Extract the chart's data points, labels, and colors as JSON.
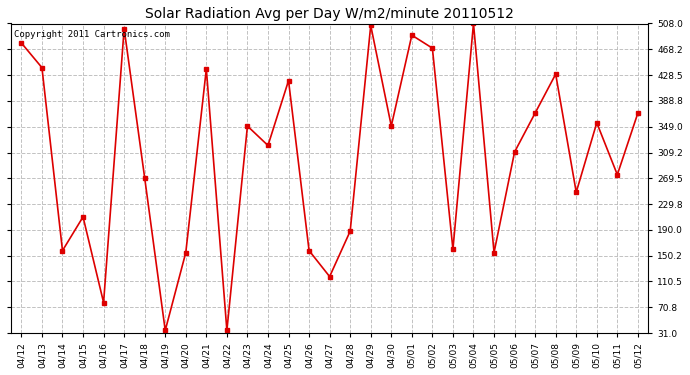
{
  "title": "Solar Radiation Avg per Day W/m2/minute 20110512",
  "copyright_text": "Copyright 2011 Cartronics.com",
  "labels": [
    "04/12",
    "04/13",
    "04/14",
    "04/15",
    "04/16",
    "04/17",
    "04/18",
    "04/19",
    "04/20",
    "04/21",
    "04/22",
    "04/23",
    "04/24",
    "04/25",
    "04/26",
    "04/27",
    "04/28",
    "04/29",
    "04/30",
    "05/01",
    "05/02",
    "05/03",
    "05/04",
    "05/05",
    "05/06",
    "05/07",
    "05/08",
    "05/09",
    "05/10",
    "05/11",
    "05/12"
  ],
  "values": [
    478,
    440,
    158,
    210,
    78,
    500,
    270,
    35,
    155,
    438,
    35,
    350,
    320,
    420,
    158,
    118,
    188,
    505,
    350,
    490,
    470,
    160,
    508,
    155,
    310,
    370,
    430,
    248,
    355,
    275,
    370
  ],
  "yticks": [
    31.0,
    70.8,
    110.5,
    150.2,
    190.0,
    229.8,
    269.5,
    309.2,
    349.0,
    388.8,
    428.5,
    468.2,
    508.0
  ],
  "ymin": 31.0,
  "ymax": 508.0,
  "line_color": "#dd0000",
  "marker": "s",
  "marker_size": 2.5,
  "background_color": "#ffffff",
  "plot_bg_color": "#ffffff",
  "grid_color": "#bbbbbb",
  "grid_style": "--",
  "title_fontsize": 10,
  "copyright_fontsize": 6.5,
  "tick_fontsize": 6.5
}
